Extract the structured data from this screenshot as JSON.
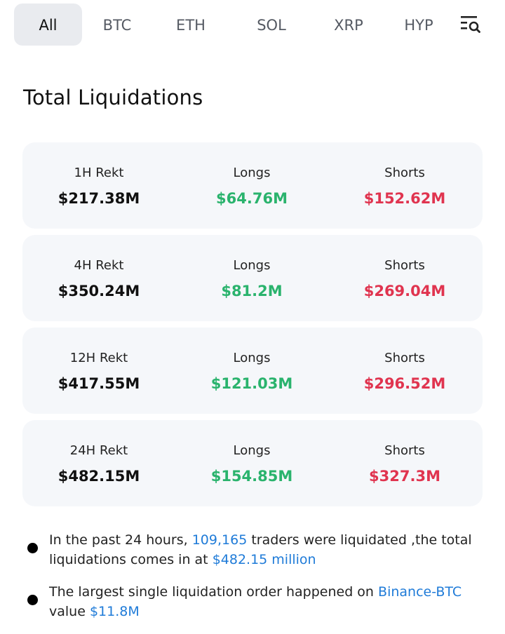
{
  "tabs": [
    {
      "label": "All",
      "active": true
    },
    {
      "label": "BTC",
      "active": false
    },
    {
      "label": "ETH",
      "active": false
    },
    {
      "label": "SOL",
      "active": false
    },
    {
      "label": "XRP",
      "active": false
    },
    {
      "label": "HYP",
      "active": false
    }
  ],
  "filter_icon": "filter-search-icon",
  "title": "Total Liquidations",
  "cards": [
    {
      "period_label": "1H Rekt",
      "total": "$217.38M",
      "longs_label": "Longs",
      "longs": "$64.76M",
      "shorts_label": "Shorts",
      "shorts": "$152.62M"
    },
    {
      "period_label": "4H Rekt",
      "total": "$350.24M",
      "longs_label": "Longs",
      "longs": "$81.2M",
      "shorts_label": "Shorts",
      "shorts": "$269.04M"
    },
    {
      "period_label": "12H Rekt",
      "total": "$417.55M",
      "longs_label": "Longs",
      "longs": "$121.03M",
      "shorts_label": "Shorts",
      "shorts": "$296.52M"
    },
    {
      "period_label": "24H Rekt",
      "total": "$482.15M",
      "longs_label": "Longs",
      "longs": "$154.85M",
      "shorts_label": "Shorts",
      "shorts": "$327.3M"
    }
  ],
  "summary": {
    "line1": {
      "prefix": "In the past 24 hours, ",
      "traders": "109,165",
      "middle": " traders were liquidated ,the total liquidations comes in at ",
      "amount": "$482.15 million"
    },
    "line2": {
      "prefix": "The largest single liquidation order happened on ",
      "exchange": "Binance-BTC",
      "middle": " value ",
      "amount": "$11.8M"
    }
  },
  "colors": {
    "long": "#2ab36d",
    "short": "#e0344f",
    "link": "#1f7bd8",
    "active_tab_bg": "#e9ebef",
    "card_bg": "#f5f7fa"
  }
}
